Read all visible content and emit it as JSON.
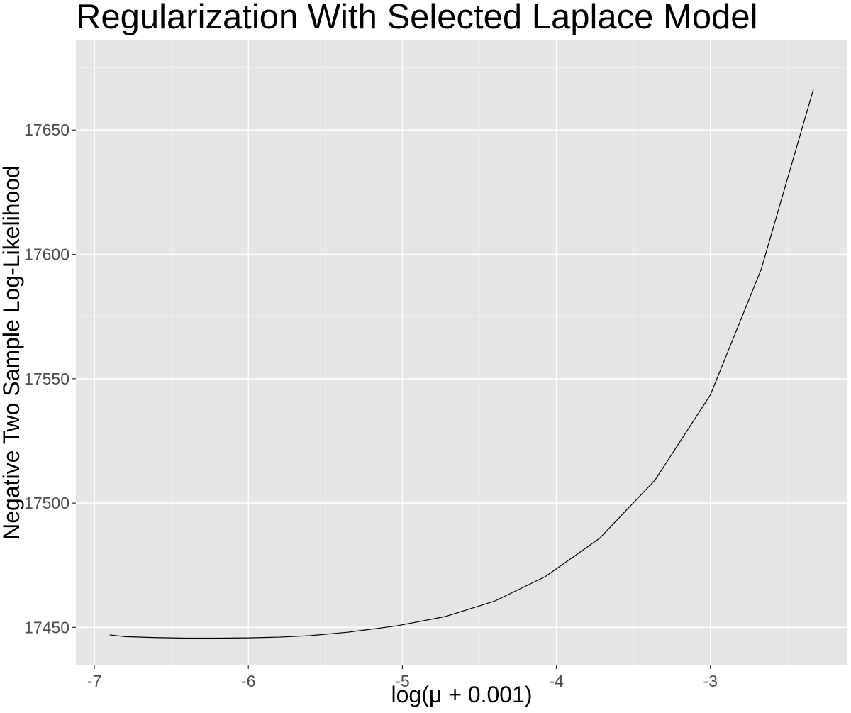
{
  "chart_data": {
    "type": "line",
    "title": "Regularization With Selected Laplace Model",
    "xlabel": "log(μ + 0.001)",
    "ylabel": "Negative Two Sample Log-Likelihood",
    "xlim": [
      -7.12,
      -2.11
    ],
    "ylim": [
      17435,
      17686
    ],
    "x_ticks": [
      -7,
      -6,
      -5,
      -4,
      -3
    ],
    "x_tick_labels": [
      "-7",
      "-6",
      "-5",
      "-4",
      "-3"
    ],
    "y_ticks": [
      17450,
      17500,
      17550,
      17600,
      17650
    ],
    "y_tick_labels": [
      "17450",
      "17500",
      "17550",
      "17600",
      "17650"
    ],
    "grid": true,
    "legend": "none",
    "series": [
      {
        "x": [
          -6.9,
          -6.8,
          -6.6,
          -6.4,
          -6.2,
          -6.0,
          -5.8,
          -5.6,
          -5.35,
          -5.04,
          -4.72,
          -4.4,
          -4.07,
          -3.72,
          -3.36,
          -3.0,
          -2.67,
          -2.33
        ],
        "y": [
          17447,
          17446.3,
          17445.9,
          17445.7,
          17445.7,
          17445.8,
          17446.1,
          17446.7,
          17448.1,
          17450.6,
          17454.4,
          17460.6,
          17470.5,
          17485.8,
          17509.2,
          17543.5,
          17594,
          17666.6
        ]
      }
    ],
    "colors": {
      "panel_background": "#e5e5e5",
      "grid_major": "#ffffff",
      "grid_minor": "#f2f2f2",
      "line": "#000000",
      "tick_label": "#4d4d4d",
      "axis_title": "#000000"
    }
  }
}
